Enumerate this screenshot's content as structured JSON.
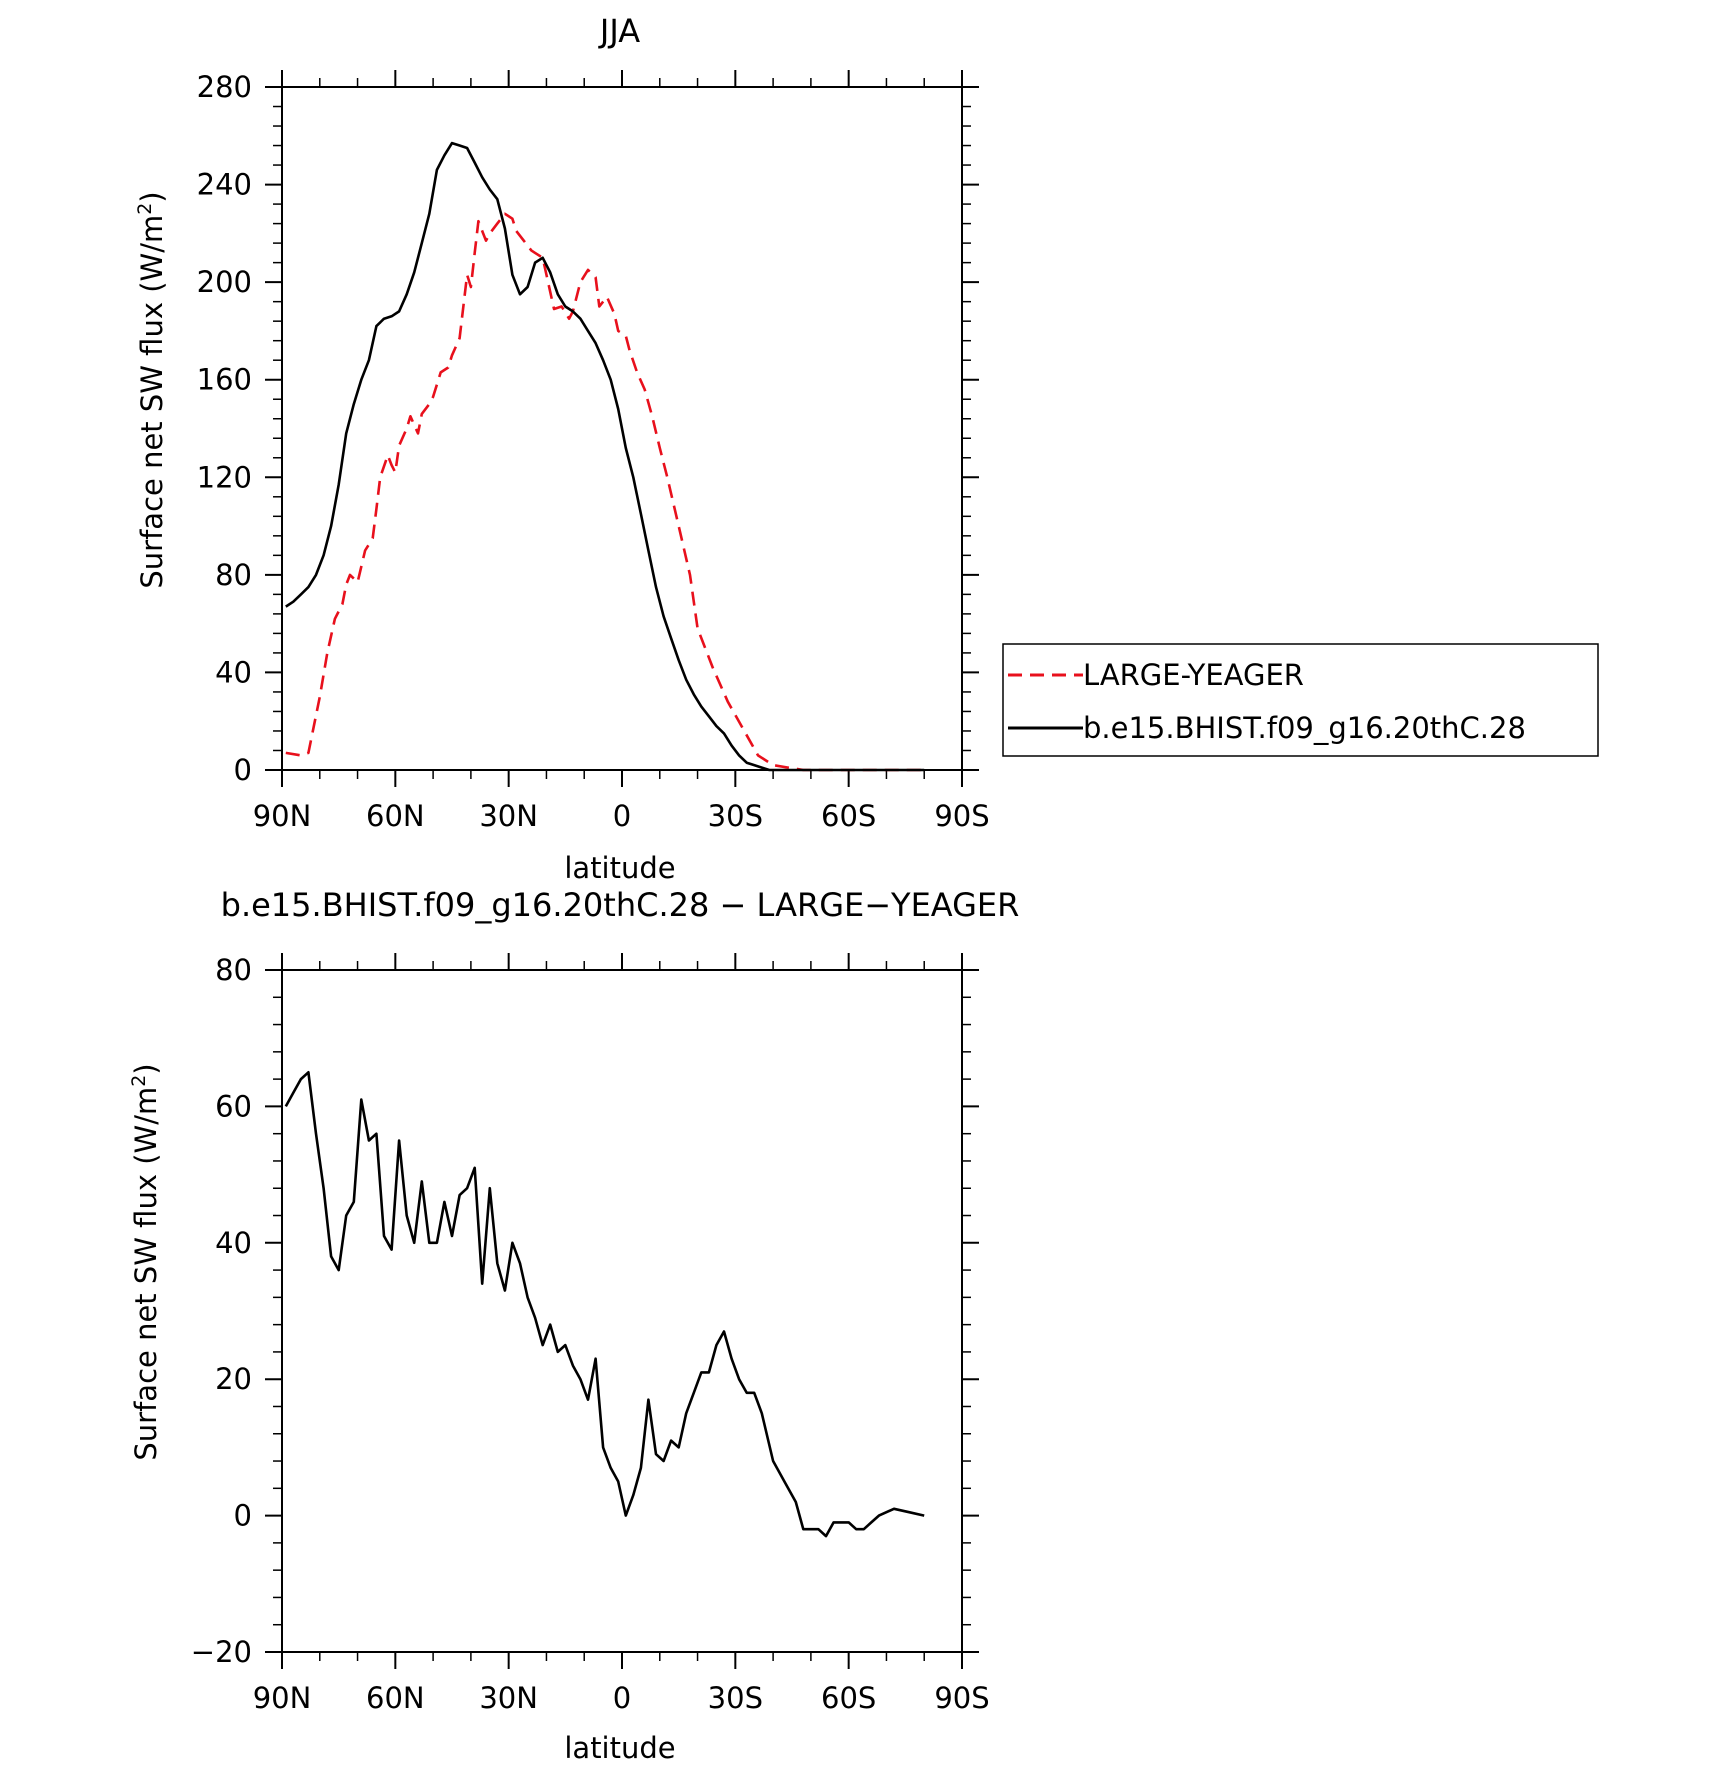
{
  "chart_data": [
    {
      "type": "line",
      "title": "JJA",
      "xlabel": "latitude",
      "ylabel": "Surface net SW flux (W/m²)",
      "ylabel_main": "Surface net SW flux (W/m",
      "ylabel_sup": "2",
      "ylabel_end": ")",
      "xlim": [
        90,
        -90
      ],
      "ylim": [
        0,
        280
      ],
      "x_ticks": [
        90,
        60,
        30,
        0,
        -30,
        -60,
        -90
      ],
      "x_tick_labels": [
        "90N",
        "60N",
        "30N",
        "0",
        "30S",
        "60S",
        "90S"
      ],
      "y_ticks": [
        0,
        40,
        80,
        120,
        160,
        200,
        240,
        280
      ],
      "y_tick_labels": [
        "0",
        "40",
        "80",
        "120",
        "160",
        "200",
        "240",
        "280"
      ],
      "grid": false,
      "legend": "right",
      "legend_entries": [
        "LARGE-YEAGER",
        "b.e15.BHIST.f09_g16.20thC.28"
      ],
      "colors": {
        "LARGE-YEAGER": "#e8101c",
        "b.e15.BHIST.f09_g16.20thC.28": "#000000"
      },
      "series": [
        {
          "name": "LARGE-YEAGER",
          "style": "dashed",
          "x": [
            89,
            85,
            83,
            80,
            78,
            76,
            74,
            73,
            72,
            70,
            68,
            66,
            65,
            64,
            62,
            61,
            60,
            59,
            57,
            56,
            54,
            53,
            51,
            50,
            48,
            46,
            45,
            43,
            41,
            40,
            39,
            38,
            36,
            35,
            33,
            31,
            29,
            28,
            26,
            24,
            23,
            21,
            18,
            16,
            14,
            13,
            11,
            9,
            7,
            6,
            4,
            2,
            1,
            -1,
            -2,
            -4,
            -6,
            -8,
            -10,
            -12,
            -15,
            -18,
            -20,
            -24,
            -28,
            -32,
            -36,
            -40,
            -44,
            -48,
            -52,
            -56,
            -60,
            -63,
            -65,
            -67,
            -70,
            -73,
            -76,
            -80
          ],
          "y": [
            7,
            6,
            7,
            30,
            48,
            62,
            68,
            76,
            80,
            77,
            90,
            95,
            107,
            120,
            129,
            125,
            122,
            133,
            140,
            145,
            138,
            146,
            150,
            153,
            163,
            165,
            170,
            177,
            203,
            198,
            212,
            225,
            217,
            220,
            224,
            228,
            226,
            221,
            217,
            213,
            212,
            210,
            189,
            190,
            185,
            188,
            200,
            205,
            202,
            190,
            194,
            187,
            180,
            178,
            172,
            163,
            156,
            145,
            132,
            120,
            100,
            80,
            58,
            42,
            28,
            17,
            6,
            2,
            1,
            0,
            0,
            0,
            0,
            0,
            0,
            0,
            0,
            0,
            0,
            0
          ]
        },
        {
          "name": "b.e15.BHIST.f09_g16.20thC.28",
          "style": "solid",
          "x": [
            89,
            87,
            85,
            83,
            81,
            79,
            77,
            75,
            73,
            71,
            69,
            67,
            65,
            63,
            61,
            59,
            57,
            55,
            53,
            51,
            49,
            47,
            45,
            43,
            41,
            39,
            37,
            35,
            33,
            31,
            29,
            27,
            25,
            23,
            21,
            19,
            17,
            15,
            13,
            11,
            9,
            7,
            5,
            3,
            1,
            -1,
            -3,
            -5,
            -7,
            -9,
            -11,
            -13,
            -15,
            -17,
            -19,
            -21,
            -23,
            -25,
            -27,
            -29,
            -31,
            -33,
            -35,
            -37,
            -39,
            -42,
            -45,
            -48,
            -51,
            -54,
            -57,
            -60,
            -63,
            -66,
            -70,
            -75,
            -80
          ],
          "y": [
            67,
            69,
            72,
            75,
            80,
            88,
            100,
            117,
            138,
            150,
            160,
            168,
            182,
            185,
            186,
            188,
            195,
            204,
            216,
            228,
            246,
            252,
            257,
            256,
            255,
            249,
            243,
            238,
            234,
            222,
            203,
            195,
            198,
            208,
            210,
            204,
            195,
            190,
            188,
            185,
            180,
            175,
            168,
            160,
            148,
            132,
            120,
            105,
            90,
            75,
            63,
            54,
            45,
            37,
            31,
            26,
            22,
            18,
            15,
            10,
            6,
            3,
            2,
            1,
            0,
            0,
            0,
            0,
            0,
            0,
            0,
            0,
            0,
            0,
            0,
            0,
            0
          ]
        }
      ]
    },
    {
      "type": "line",
      "title": "b.e15.BHIST.f09_g16.20thC.28 − LARGE−YEAGER",
      "xlabel": "latitude",
      "ylabel": "Surface net SW flux (W/m²)",
      "ylabel_main": "Surface net SW flux (W/m",
      "ylabel_sup": "2",
      "ylabel_end": ")",
      "xlim": [
        90,
        -90
      ],
      "ylim": [
        -20,
        80
      ],
      "x_ticks": [
        90,
        60,
        30,
        0,
        -30,
        -60,
        -90
      ],
      "x_tick_labels": [
        "90N",
        "60N",
        "30N",
        "0",
        "30S",
        "60S",
        "90S"
      ],
      "y_ticks": [
        -20,
        0,
        20,
        40,
        60,
        80
      ],
      "y_tick_labels": [
        "−20",
        "0",
        "20",
        "40",
        "60",
        "80"
      ],
      "grid": false,
      "colors": {
        "line": "#000000"
      },
      "series": [
        {
          "style": "solid",
          "x": [
            89,
            87,
            85,
            83,
            81,
            79,
            77,
            75,
            73,
            71,
            69,
            67,
            65,
            63,
            61,
            59,
            57,
            55,
            53,
            51,
            49,
            47,
            45,
            43,
            41,
            39,
            37,
            35,
            33,
            31,
            29,
            27,
            25,
            23,
            21,
            19,
            17,
            15,
            13,
            11,
            9,
            7,
            5,
            3,
            1,
            -1,
            -3,
            -5,
            -7,
            -9,
            -11,
            -13,
            -15,
            -17,
            -19,
            -21,
            -23,
            -25,
            -27,
            -29,
            -31,
            -33,
            -35,
            -37,
            -40,
            -43,
            -46,
            -48,
            -50,
            -52,
            -54,
            -56,
            -58,
            -60,
            -62,
            -64,
            -66,
            -68,
            -72,
            -76,
            -80
          ],
          "y": [
            60,
            62,
            64,
            65,
            56,
            48,
            38,
            36,
            44,
            46,
            61,
            55,
            56,
            41,
            39,
            55,
            44,
            40,
            49,
            40,
            40,
            46,
            41,
            47,
            48,
            51,
            34,
            48,
            37,
            33,
            40,
            37,
            32,
            29,
            25,
            28,
            24,
            25,
            22,
            20,
            17,
            23,
            10,
            7,
            5,
            0,
            3,
            7,
            17,
            9,
            8,
            11,
            10,
            15,
            18,
            21,
            21,
            25,
            27,
            23,
            20,
            18,
            18,
            15,
            8,
            5,
            2,
            -2,
            -2,
            -2,
            -3,
            -1,
            -1,
            -1,
            -2,
            -2,
            -1,
            0,
            1,
            0.5,
            0
          ]
        }
      ]
    }
  ]
}
